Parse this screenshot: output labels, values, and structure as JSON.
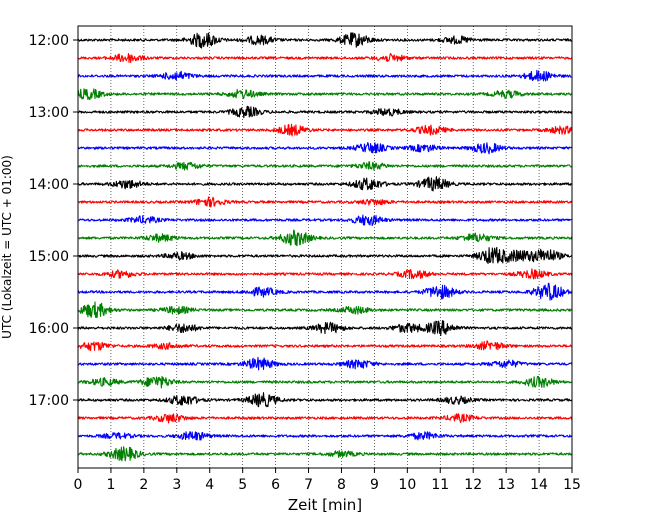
{
  "chart_data": {
    "type": "line",
    "title": "",
    "xlabel": "Zeit  [min]",
    "ylabel": "UTC (Lokalzeit = UTC + 01:00)",
    "xlim": [
      0,
      15
    ],
    "x_ticks": [
      "0",
      "1",
      "2",
      "3",
      "4",
      "5",
      "6",
      "7",
      "8",
      "9",
      "10",
      "11",
      "12",
      "13",
      "14",
      "15"
    ],
    "y_ticks": [
      "12:00",
      "13:00",
      "14:00",
      "15:00",
      "16:00",
      "17:00"
    ],
    "grid": "vertical dotted lines at each minute",
    "legend": "none",
    "colors": [
      "#000000",
      "#ff0000",
      "#0000ff",
      "#008000"
    ],
    "traces": [
      {
        "start": "12:00",
        "color": "#000000",
        "events": [
          {
            "t": 3.8,
            "a": 0.9
          },
          {
            "t": 8.4,
            "a": 0.8
          },
          {
            "t": 5.5,
            "a": 0.5
          },
          {
            "t": 11.5,
            "a": 0.4
          }
        ]
      },
      {
        "start": "12:15",
        "color": "#ff0000",
        "events": [
          {
            "t": 1.5,
            "a": 0.5
          },
          {
            "t": 9.5,
            "a": 0.4
          }
        ]
      },
      {
        "start": "12:30",
        "color": "#0000ff",
        "events": [
          {
            "t": 3.0,
            "a": 0.5
          },
          {
            "t": 14.0,
            "a": 0.6
          }
        ]
      },
      {
        "start": "12:45",
        "color": "#008000",
        "events": [
          {
            "t": 0.3,
            "a": 0.6
          },
          {
            "t": 5.0,
            "a": 0.5
          },
          {
            "t": 13.0,
            "a": 0.4
          }
        ]
      },
      {
        "start": "13:00",
        "color": "#000000",
        "events": [
          {
            "t": 5.1,
            "a": 0.6
          },
          {
            "t": 9.4,
            "a": 0.4
          }
        ]
      },
      {
        "start": "13:15",
        "color": "#ff0000",
        "events": [
          {
            "t": 6.5,
            "a": 0.6
          },
          {
            "t": 10.7,
            "a": 0.5
          },
          {
            "t": 14.7,
            "a": 0.4
          }
        ]
      },
      {
        "start": "13:30",
        "color": "#0000ff",
        "events": [
          {
            "t": 8.9,
            "a": 0.6
          },
          {
            "t": 12.4,
            "a": 0.6
          },
          {
            "t": 10.5,
            "a": 0.4
          }
        ]
      },
      {
        "start": "13:45",
        "color": "#008000",
        "events": [
          {
            "t": 3.3,
            "a": 0.4
          },
          {
            "t": 8.9,
            "a": 0.4
          }
        ]
      },
      {
        "start": "14:00",
        "color": "#000000",
        "events": [
          {
            "t": 1.5,
            "a": 0.5
          },
          {
            "t": 8.8,
            "a": 0.7
          },
          {
            "t": 10.8,
            "a": 0.8
          }
        ]
      },
      {
        "start": "14:15",
        "color": "#ff0000",
        "events": [
          {
            "t": 4.0,
            "a": 0.5
          },
          {
            "t": 9.0,
            "a": 0.3
          }
        ]
      },
      {
        "start": "14:30",
        "color": "#0000ff",
        "events": [
          {
            "t": 2.0,
            "a": 0.4
          },
          {
            "t": 8.8,
            "a": 0.6
          }
        ]
      },
      {
        "start": "14:45",
        "color": "#008000",
        "events": [
          {
            "t": 6.6,
            "a": 0.9
          },
          {
            "t": 12.1,
            "a": 0.5
          },
          {
            "t": 2.5,
            "a": 0.4
          }
        ]
      },
      {
        "start": "15:00",
        "color": "#000000",
        "events": [
          {
            "t": 12.6,
            "a": 1.0
          },
          {
            "t": 14.2,
            "a": 0.8
          },
          {
            "t": 13.4,
            "a": 0.6
          },
          {
            "t": 3.1,
            "a": 0.4
          }
        ]
      },
      {
        "start": "15:15",
        "color": "#ff0000",
        "events": [
          {
            "t": 10.2,
            "a": 0.5
          },
          {
            "t": 13.8,
            "a": 0.5
          },
          {
            "t": 1.3,
            "a": 0.4
          }
        ]
      },
      {
        "start": "15:30",
        "color": "#0000ff",
        "events": [
          {
            "t": 11.0,
            "a": 0.8
          },
          {
            "t": 14.3,
            "a": 1.0
          },
          {
            "t": 5.6,
            "a": 0.5
          }
        ]
      },
      {
        "start": "15:45",
        "color": "#008000",
        "events": [
          {
            "t": 0.5,
            "a": 0.9
          },
          {
            "t": 3.0,
            "a": 0.4
          },
          {
            "t": 8.4,
            "a": 0.4
          }
        ]
      },
      {
        "start": "16:00",
        "color": "#000000",
        "events": [
          {
            "t": 11.0,
            "a": 0.8
          },
          {
            "t": 7.6,
            "a": 0.6
          },
          {
            "t": 10.0,
            "a": 0.5
          },
          {
            "t": 3.2,
            "a": 0.5
          }
        ]
      },
      {
        "start": "16:15",
        "color": "#ff0000",
        "events": [
          {
            "t": 0.5,
            "a": 0.5
          },
          {
            "t": 12.5,
            "a": 0.5
          },
          {
            "t": 2.7,
            "a": 0.3
          }
        ]
      },
      {
        "start": "16:30",
        "color": "#0000ff",
        "events": [
          {
            "t": 5.5,
            "a": 0.7
          },
          {
            "t": 8.5,
            "a": 0.5
          },
          {
            "t": 13.0,
            "a": 0.4
          }
        ]
      },
      {
        "start": "16:45",
        "color": "#008000",
        "events": [
          {
            "t": 2.4,
            "a": 0.7
          },
          {
            "t": 14.0,
            "a": 0.6
          },
          {
            "t": 0.8,
            "a": 0.4
          }
        ]
      },
      {
        "start": "17:00",
        "color": "#000000",
        "events": [
          {
            "t": 5.6,
            "a": 0.8
          },
          {
            "t": 3.2,
            "a": 0.6
          },
          {
            "t": 11.5,
            "a": 0.4
          }
        ]
      },
      {
        "start": "17:15",
        "color": "#ff0000",
        "events": [
          {
            "t": 2.8,
            "a": 0.5
          },
          {
            "t": 11.6,
            "a": 0.4
          }
        ]
      },
      {
        "start": "17:30",
        "color": "#0000ff",
        "events": [
          {
            "t": 3.5,
            "a": 0.5
          },
          {
            "t": 10.5,
            "a": 0.4
          },
          {
            "t": 1.2,
            "a": 0.3
          }
        ]
      },
      {
        "start": "17:45",
        "color": "#008000",
        "events": [
          {
            "t": 1.4,
            "a": 0.8
          },
          {
            "t": 8.0,
            "a": 0.3
          }
        ]
      }
    ]
  }
}
